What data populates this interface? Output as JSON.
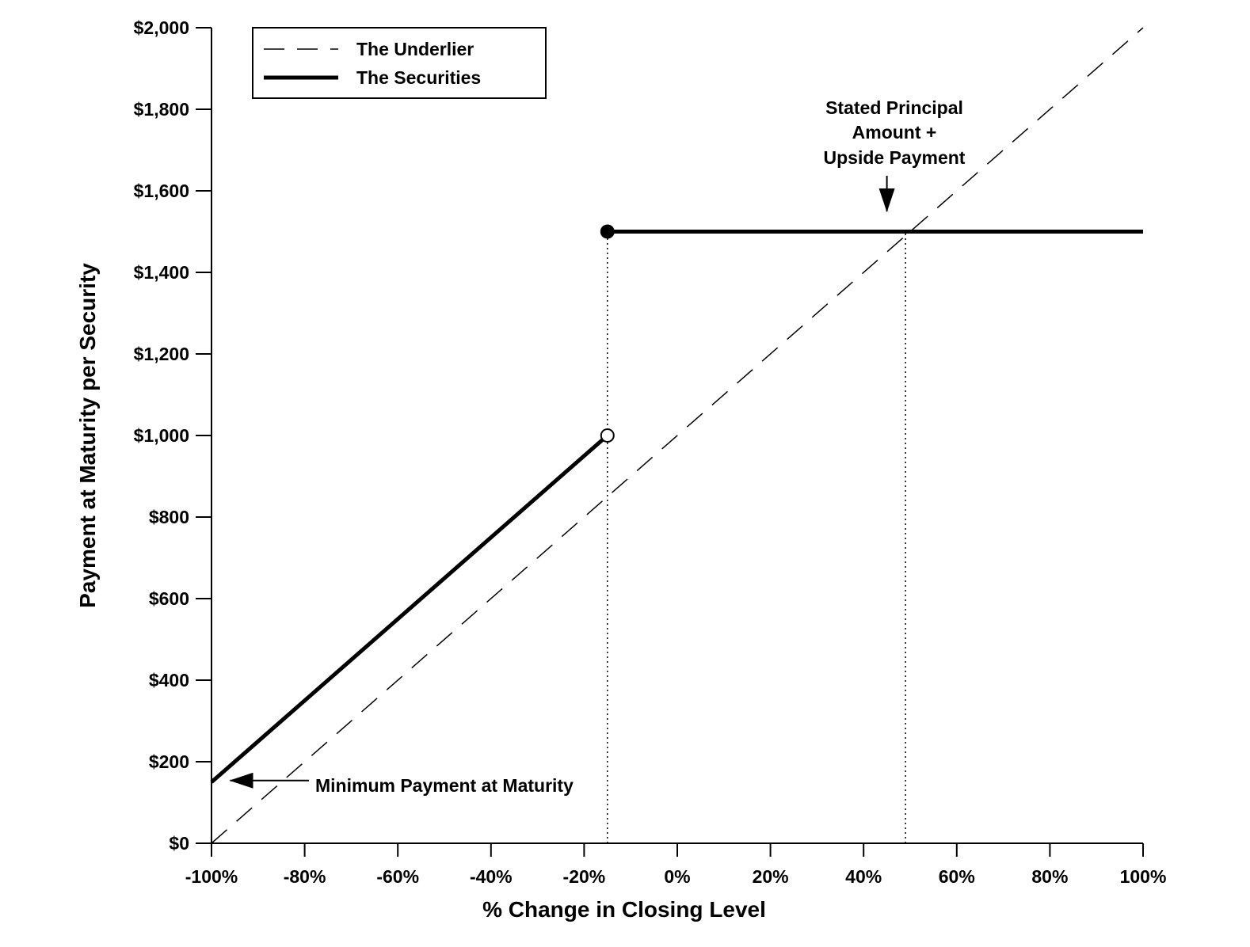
{
  "chart_data": {
    "type": "line",
    "xlabel": "% Change in Closing Level",
    "ylabel": "Payment at Maturity per Security",
    "xlim": [
      -100,
      100
    ],
    "ylim": [
      0,
      2000
    ],
    "x_ticks": [
      {
        "value": -100,
        "label": "-100%"
      },
      {
        "value": -80,
        "label": "-80%"
      },
      {
        "value": -60,
        "label": "-60%"
      },
      {
        "value": -40,
        "label": "-40%"
      },
      {
        "value": -20,
        "label": "-20%"
      },
      {
        "value": 0,
        "label": "0%"
      },
      {
        "value": 20,
        "label": "20%"
      },
      {
        "value": 40,
        "label": "40%"
      },
      {
        "value": 60,
        "label": "60%"
      },
      {
        "value": 80,
        "label": "80%"
      },
      {
        "value": 100,
        "label": "100%"
      }
    ],
    "y_ticks": [
      {
        "value": 0,
        "label": "$0"
      },
      {
        "value": 200,
        "label": "$200"
      },
      {
        "value": 400,
        "label": "$400"
      },
      {
        "value": 600,
        "label": "$600"
      },
      {
        "value": 800,
        "label": "$800"
      },
      {
        "value": 1000,
        "label": "$1,000"
      },
      {
        "value": 1200,
        "label": "$1,200"
      },
      {
        "value": 1400,
        "label": "$1,400"
      },
      {
        "value": 1600,
        "label": "$1,600"
      },
      {
        "value": 1800,
        "label": "$1,800"
      },
      {
        "value": 2000,
        "label": "$2,000"
      }
    ],
    "series": [
      {
        "name": "The Underlier",
        "style": "dashed",
        "color": "#000000",
        "x": [
          -100,
          100
        ],
        "y": [
          0,
          2000
        ]
      },
      {
        "name": "The Securities",
        "style": "solid",
        "color": "#000000",
        "segments": [
          {
            "x": [
              -100,
              -15
            ],
            "y": [
              150,
              1000
            ]
          },
          {
            "x": [
              -15,
              100
            ],
            "y": [
              1500,
              1500
            ]
          }
        ]
      }
    ],
    "markers": [
      {
        "x": -15,
        "y": 1500,
        "fill": "filled"
      },
      {
        "x": -15,
        "y": 1000,
        "fill": "open"
      }
    ],
    "reference_lines": [
      {
        "x": -15,
        "y_from": 0,
        "y_to": 1500,
        "style": "dotted"
      },
      {
        "x": 49,
        "y_from": 0,
        "y_to": 1500,
        "style": "dotted"
      }
    ],
    "annotations": [
      {
        "lines": [
          "Stated Principal",
          "Amount +",
          "Upside Payment"
        ],
        "arrow_to": {
          "x": 45,
          "y": 1530
        }
      },
      {
        "lines": [
          "Minimum Payment at Maturity"
        ],
        "arrow_to": {
          "x": -96,
          "y": 150
        }
      }
    ],
    "legend": {
      "position": "top-left"
    },
    "grid": false
  }
}
